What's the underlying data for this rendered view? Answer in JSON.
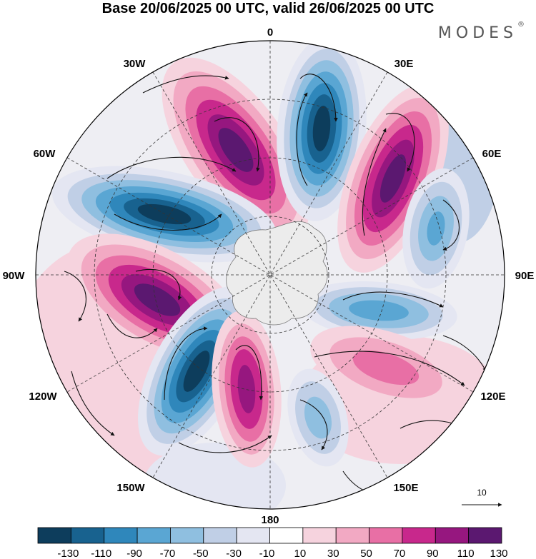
{
  "title": "Base 20/06/2025 00 UTC, valid 26/06/2025 00 UTC",
  "brand": {
    "name": "MODES",
    "mark": "®"
  },
  "map": {
    "projection": "south-polar-stereographic",
    "longitude_labels": {
      "top": "0",
      "top_right": "30E",
      "right_upper": "60E",
      "right": "90E",
      "right_lower": "120E",
      "bottom_right": "150E",
      "bottom": "180",
      "bottom_left": "150W",
      "left_lower": "120W",
      "left": "90W",
      "left_upper": "60W",
      "top_left": "30W"
    },
    "reference_vector": {
      "label": "10"
    }
  },
  "colorbar": {
    "colors": [
      "#0d3d5c",
      "#18628f",
      "#2f87bb",
      "#5aa6d3",
      "#8fbfe0",
      "#c0cfe6",
      "#e4e6f2",
      "#ffffff",
      "#f6d3de",
      "#f2a9c3",
      "#e86fa5",
      "#c8288c",
      "#96177f",
      "#5b1870"
    ],
    "tick_labels": [
      "-130",
      "-110",
      "-90",
      "-70",
      "-50",
      "-30",
      "-10",
      "10",
      "30",
      "50",
      "70",
      "90",
      "110",
      "130"
    ]
  }
}
